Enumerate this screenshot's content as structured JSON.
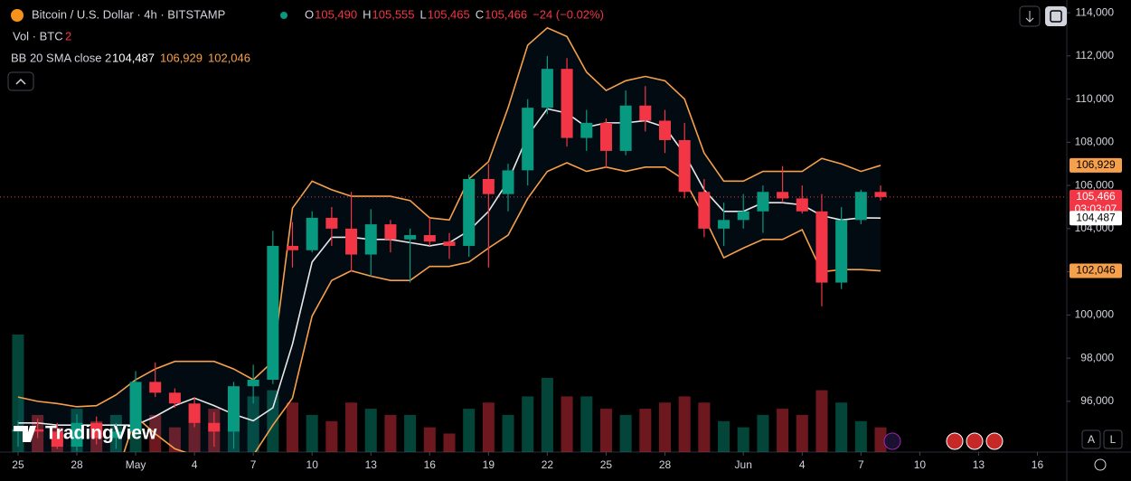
{
  "chart_data": {
    "type": "candlestick",
    "title": "Bitcoin / U.S. Dollar · 4h · BITSTAMP",
    "ohlc_legend": [
      {
        "key": "O",
        "value": "105,490"
      },
      {
        "key": "H",
        "value": "105,555"
      },
      {
        "key": "L",
        "value": "105,465"
      },
      {
        "key": "C",
        "value": "105,466"
      }
    ],
    "change": "−24 (−0.02%)",
    "volume_label": "Vol · BTC",
    "volume_value": "2",
    "indicator_label": "BB 20 SMA close 2",
    "indicator_values": [
      {
        "text": "104,487",
        "color": "#ffffff"
      },
      {
        "text": "106,929",
        "color": "#f7a04b"
      },
      {
        "text": "102,046",
        "color": "#f7a04b"
      }
    ],
    "x": [
      0,
      1,
      2,
      3,
      4,
      5,
      6,
      7,
      8,
      9,
      10,
      11,
      12,
      13,
      14,
      15,
      16,
      17,
      18,
      19,
      20,
      21,
      22,
      23,
      24,
      25,
      26,
      27,
      28,
      29,
      30,
      31,
      32,
      33,
      34,
      35,
      36,
      37,
      38,
      39,
      40,
      41,
      42,
      43,
      44
    ],
    "open": [
      94600,
      94700,
      94600,
      93900,
      95000,
      94300,
      94600,
      96900,
      96400,
      95900,
      95000,
      94600,
      96700,
      97000,
      103200,
      103000,
      104500,
      104000,
      102800,
      104200,
      103500,
      103700,
      103400,
      103200,
      106300,
      105600,
      106700,
      109600,
      111400,
      108200,
      108900,
      107600,
      109700,
      109000,
      108100,
      105700,
      104000,
      104400,
      104800,
      105700,
      105400,
      104800,
      101500,
      104400,
      105700
    ],
    "high": [
      95100,
      95200,
      95000,
      95400,
      95300,
      95000,
      97400,
      97800,
      96600,
      96200,
      95500,
      96900,
      97700,
      103900,
      104300,
      104800,
      105000,
      105700,
      104900,
      104400,
      104000,
      104500,
      103800,
      106500,
      107000,
      107000,
      110000,
      112000,
      111900,
      109500,
      109100,
      110400,
      110600,
      109500,
      108900,
      106300,
      105200,
      105600,
      106000,
      106900,
      106000,
      105600,
      105000,
      105800,
      106000
    ],
    "low": [
      93900,
      94300,
      93800,
      93700,
      94000,
      93800,
      94400,
      96200,
      95700,
      94800,
      93900,
      93800,
      95900,
      96800,
      102200,
      102900,
      103200,
      102000,
      101800,
      102900,
      101500,
      103200,
      102600,
      102700,
      102200,
      104800,
      106000,
      109300,
      107800,
      107600,
      106800,
      107400,
      108500,
      107500,
      105400,
      103600,
      103200,
      104000,
      103800,
      105200,
      104700,
      100400,
      101200,
      104200,
      105300
    ],
    "close": [
      94700,
      94600,
      93900,
      95000,
      94300,
      94600,
      96900,
      96400,
      95900,
      95000,
      94600,
      96700,
      97000,
      103200,
      103000,
      104500,
      104000,
      102800,
      104200,
      103500,
      103700,
      103400,
      103200,
      106300,
      105600,
      106700,
      109600,
      111400,
      108200,
      108900,
      107600,
      109700,
      109000,
      108100,
      105700,
      104000,
      104400,
      104800,
      105700,
      105400,
      104800,
      101500,
      104400,
      105700,
      105466
    ],
    "volume": [
      95,
      30,
      20,
      35,
      25,
      30,
      40,
      30,
      20,
      25,
      35,
      30,
      45,
      50,
      40,
      30,
      25,
      40,
      35,
      30,
      30,
      20,
      15,
      35,
      40,
      30,
      45,
      60,
      45,
      45,
      35,
      30,
      35,
      40,
      45,
      40,
      25,
      20,
      30,
      35,
      30,
      50,
      40,
      25,
      20
    ],
    "up_color": "#089981",
    "down_color": "#f23645",
    "bollinger": {
      "color": "#f7a04b",
      "basis_color": "#e8e8e8",
      "upper": [
        96200,
        96000,
        95900,
        95750,
        95800,
        96300,
        97000,
        97500,
        97850,
        97850,
        97850,
        97500,
        97000,
        97850,
        104950,
        106200,
        105800,
        105500,
        105500,
        105500,
        105300,
        104500,
        104400,
        106300,
        107100,
        109600,
        112500,
        113300,
        112900,
        111250,
        110400,
        110850,
        111050,
        110850,
        110000,
        107500,
        106200,
        106200,
        106650,
        106650,
        106650,
        107250,
        107000,
        106650,
        106929
      ],
      "basis": [
        95000,
        95000,
        94900,
        94900,
        94900,
        94900,
        94900,
        95300,
        95800,
        96150,
        95800,
        95400,
        95100,
        95700,
        98650,
        102450,
        103600,
        103600,
        103500,
        103500,
        103350,
        103200,
        103350,
        103900,
        104800,
        106200,
        108300,
        109550,
        109350,
        108700,
        108900,
        108900,
        109000,
        108700,
        107450,
        105800,
        104800,
        104800,
        105200,
        105200,
        105100,
        104600,
        104400,
        104500,
        104487
      ],
      "lower": [
        92000,
        92000,
        92000,
        92000,
        92000,
        92500,
        95300,
        94500,
        93800,
        93500,
        93200,
        93500,
        93500,
        94900,
        96150,
        99950,
        101600,
        102050,
        101800,
        101600,
        101600,
        102250,
        102250,
        102450,
        103100,
        103700,
        105400,
        106650,
        107050,
        106650,
        106850,
        106650,
        106850,
        106850,
        106250,
        104550,
        102650,
        103100,
        103500,
        103500,
        103950,
        102000,
        102100,
        102100,
        102046
      ]
    },
    "price_tags": [
      {
        "value": 106929,
        "label": "106,929",
        "color": "#f7a04b",
        "text_color": "#000000"
      },
      {
        "value": 105466,
        "label": "105,466",
        "sub": "03:03:07",
        "color": "#f23645",
        "text_color": "#ffffff"
      },
      {
        "value": 104487,
        "label": "104,487",
        "color": "#ffffff",
        "text_color": "#000000"
      },
      {
        "value": 102046,
        "label": "102,046",
        "color": "#f7a04b",
        "text_color": "#000000"
      }
    ],
    "xlim": [
      -0.92,
      53.5
    ],
    "xticks": [
      {
        "value": 0,
        "label": "25"
      },
      {
        "value": 3,
        "label": "28"
      },
      {
        "value": 6,
        "label": "May"
      },
      {
        "value": 9,
        "label": "4"
      },
      {
        "value": 12,
        "label": "7"
      },
      {
        "value": 15,
        "label": "10"
      },
      {
        "value": 18,
        "label": "13"
      },
      {
        "value": 21,
        "label": "16"
      },
      {
        "value": 24,
        "label": "19"
      },
      {
        "value": 27,
        "label": "22"
      },
      {
        "value": 30,
        "label": "25"
      },
      {
        "value": 33,
        "label": "28"
      },
      {
        "value": 37,
        "label": "Jun"
      },
      {
        "value": 40,
        "label": "4"
      },
      {
        "value": 43,
        "label": "7"
      },
      {
        "value": 46,
        "label": "10"
      },
      {
        "value": 49,
        "label": "13"
      },
      {
        "value": 52,
        "label": "16"
      }
    ],
    "ylim": [
      93650,
      114590
    ],
    "yticks": [
      {
        "value": 96000,
        "label": "96,000"
      },
      {
        "value": 98000,
        "label": "98,000"
      },
      {
        "value": 100000,
        "label": "100,000"
      },
      {
        "value": 102000,
        "label": "102,000"
      },
      {
        "value": 104000,
        "label": "104,000"
      },
      {
        "value": 106000,
        "label": "106,000"
      },
      {
        "value": 108000,
        "label": "108,000"
      },
      {
        "value": 110000,
        "label": "110,000"
      },
      {
        "value": 112000,
        "label": "112,000"
      },
      {
        "value": 114000,
        "label": "114,000"
      }
    ],
    "brand": "TradingView",
    "scale_buttons": [
      "A",
      "L"
    ]
  }
}
